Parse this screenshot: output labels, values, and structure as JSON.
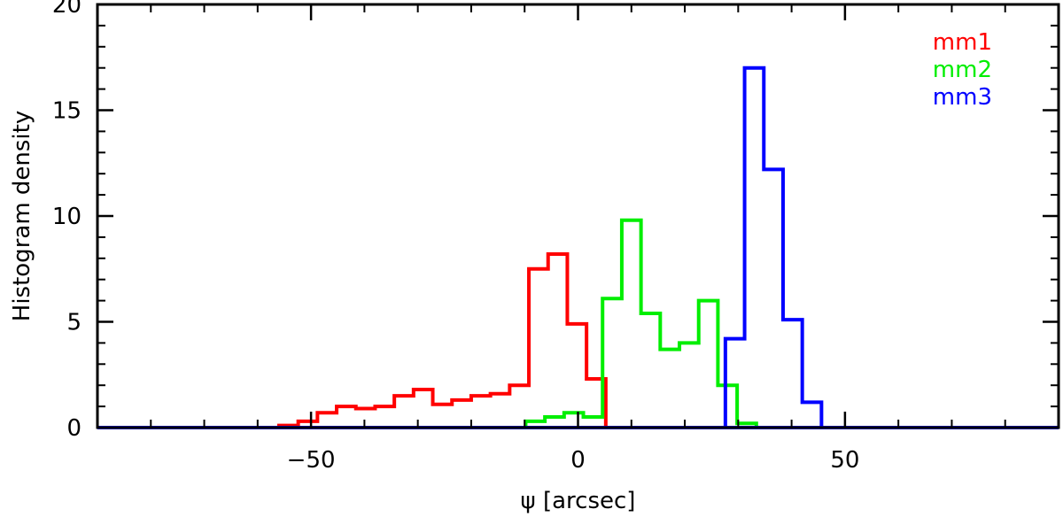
{
  "chart_data": {
    "type": "histogram",
    "xlabel": "ψ [arcsec]",
    "ylabel": "Histogram density",
    "xlim": [
      -90,
      90
    ],
    "ylim": [
      0,
      20
    ],
    "x_ticks": [
      -50,
      0,
      50
    ],
    "x_tick_labels": [
      "−50",
      "0",
      "50"
    ],
    "y_ticks": [
      0,
      5,
      10,
      15,
      20
    ],
    "y_tick_labels": [
      "0",
      "5",
      "10",
      "15",
      "20"
    ],
    "x_minor_step": 10,
    "y_minor_step": 1,
    "grid": false,
    "legend_position": "top-right",
    "bin_width": 3.6,
    "series": [
      {
        "name": "mm1",
        "color": "#ff0000",
        "x_start": -56.0,
        "values": [
          0.1,
          0.3,
          0.7,
          1.0,
          0.9,
          1.0,
          1.5,
          1.8,
          1.1,
          1.3,
          1.5,
          1.6,
          2.0,
          7.5,
          8.2,
          4.9,
          2.3,
          0.0,
          0.0,
          0.0,
          0.0,
          0.0,
          0.0,
          0.0,
          0.0,
          0.0
        ]
      },
      {
        "name": "mm2",
        "color": "#00ee00",
        "x_start": -9.8,
        "values": [
          0.3,
          0.5,
          0.7,
          0.5,
          6.1,
          9.8,
          5.4,
          3.7,
          4.0,
          6.0,
          2.0,
          0.2,
          0.0
        ]
      },
      {
        "name": "mm3",
        "color": "#0000ff",
        "x_start": 27.6,
        "values": [
          4.2,
          17.0,
          12.2,
          5.1,
          1.2
        ]
      }
    ]
  }
}
